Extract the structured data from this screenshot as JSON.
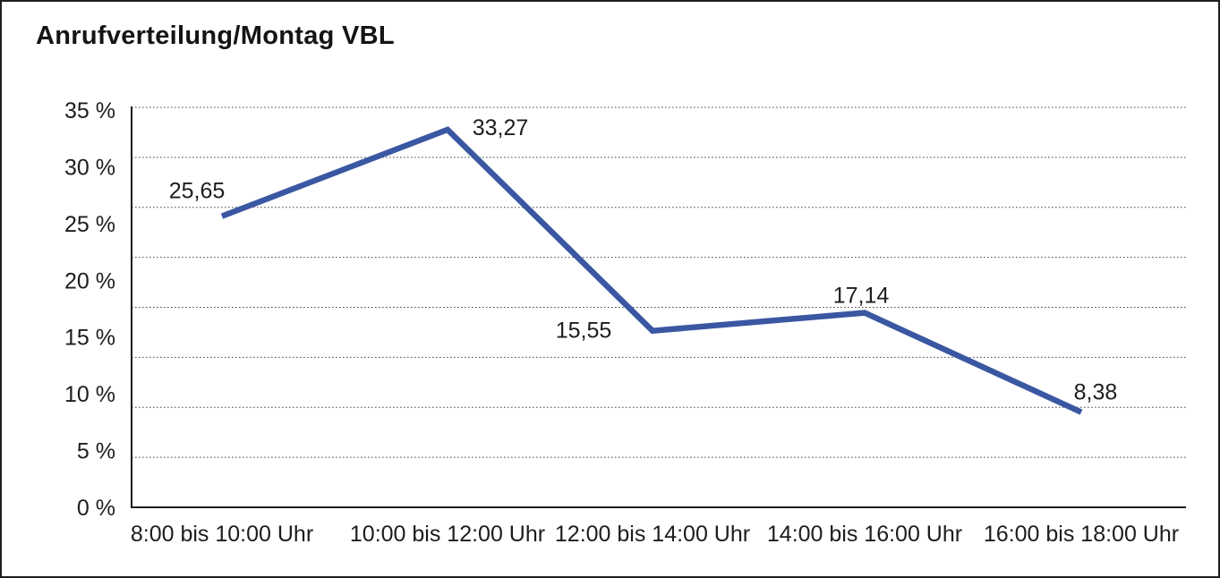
{
  "window": {
    "background": "#ffffff",
    "border_color": "#1f1f1f"
  },
  "header": {
    "title": "Anrufverteilung/Montag VBL"
  },
  "chart_data": {
    "type": "line",
    "title": "Anrufverteilung/Montag VBL",
    "categories": [
      "8:00 bis 10:00 Uhr",
      "10:00 bis 12:00 Uhr",
      "12:00 bis 14:00 Uhr",
      "14:00 bis 16:00 Uhr",
      "16:00 bis 18:00 Uhr"
    ],
    "values": [
      25.65,
      33.27,
      15.55,
      17.14,
      8.38
    ],
    "value_labels": [
      "25,65",
      "33,27",
      "15,55",
      "17,14",
      "8,38"
    ],
    "xlabel": "",
    "ylabel": "",
    "ylim": [
      0,
      35
    ],
    "y_tick_values": [
      35,
      30,
      25,
      20,
      15,
      10,
      5,
      0
    ],
    "y_tick_labels": [
      "35 %",
      "30 %",
      "25 %",
      "20 %",
      "15 %",
      "10 %",
      "5 %",
      "0 %"
    ],
    "grid": "horizontal-dotted",
    "legend_position": "none",
    "colors": {
      "line": "#3A57A2",
      "axis": "#1d1d1d",
      "gridline": "#4a4a4a",
      "text": "#1d1d1d"
    }
  }
}
